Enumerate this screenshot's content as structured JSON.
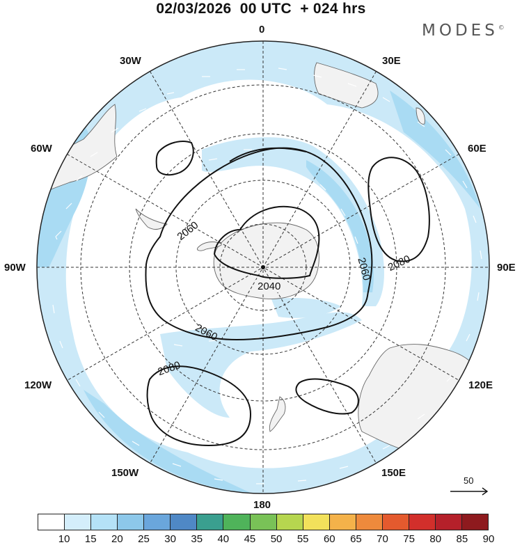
{
  "title": "02/03/2026  00 UTC  + 024 hrs",
  "brand": {
    "name": "MODES",
    "mark": "©"
  },
  "longitude_labels": {
    "lon_0": "0",
    "lon_30e": "30E",
    "lon_60e": "60E",
    "lon_90e": "90E",
    "lon_120e": "120E",
    "lon_150e": "150E",
    "lon_180": "180",
    "lon_150w": "150W",
    "lon_120w": "120W",
    "lon_90w": "90W",
    "lon_60w": "60W",
    "lon_30w": "30W"
  },
  "contours": {
    "c2040": "2040",
    "c2060a": "2060",
    "c2060b": "2060",
    "c2060c": "2060",
    "c2080a": "2080",
    "c2080b": "2080"
  },
  "vector_reference": {
    "label": "50"
  },
  "colorbar": {
    "ticks": [
      "10",
      "15",
      "20",
      "25",
      "30",
      "35",
      "40",
      "45",
      "50",
      "55",
      "60",
      "65",
      "70",
      "75",
      "80",
      "85",
      "90"
    ],
    "colors": [
      "#ffffff",
      "#d4eefb",
      "#b5e2f7",
      "#8dc8ea",
      "#6aa6dc",
      "#4f88c6",
      "#3a9f8f",
      "#4fb35a",
      "#79c257",
      "#b6d64f",
      "#f2e15b",
      "#f4b24a",
      "#ee8a3c",
      "#e45a2e",
      "#d22f2b",
      "#b5202a",
      "#8e1a1e"
    ]
  },
  "colors": {
    "wind_light": "#cbe9f8",
    "wind_mid": "#a9dbf3",
    "land": "#f2f2f2",
    "coast": "#666666"
  }
}
